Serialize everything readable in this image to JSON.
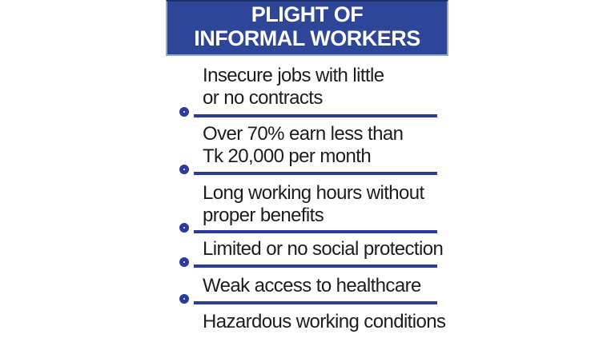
{
  "header": {
    "title": "PLIGHT OF\nINFORMAL WORKERS"
  },
  "items": [
    "Insecure jobs with little\nor no contracts",
    "Over 70% earn less than\nTk 20,000 per month",
    "Long working hours without\nproper benefits",
    "Limited or no social protection",
    "Weak access to healthcare",
    "Hazardous working conditions"
  ],
  "colors": {
    "header_bg": "#2d4697",
    "header_border_light": "#9aa7d6",
    "header_border_dark": "#1e2f6e",
    "accent_blue": "#2a3b9b",
    "text_color": "#1d1d1d",
    "page_bg": "#ffffff"
  }
}
